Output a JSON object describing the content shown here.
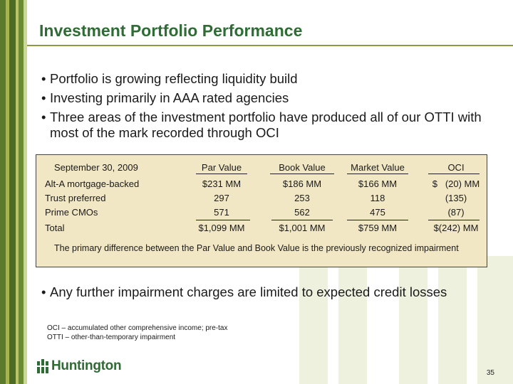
{
  "slide": {
    "title": "Investment Portfolio Performance",
    "bullets": [
      "Portfolio is growing reflecting liquidity build",
      "Investing primarily in AAA rated agencies",
      "Three areas of the investment portfolio have produced all of our OTTI with most of the mark recorded through OCI"
    ],
    "table": {
      "headers": [
        "September 30, 2009",
        "Par Value",
        "Book  Value",
        "Market Value",
        "OCI"
      ],
      "rows": [
        [
          "Alt-A mortgage-backed",
          "$231 MM",
          "$186 MM",
          "$166 MM",
          "$   (20) MM"
        ],
        [
          "Trust preferred",
          "297",
          "253",
          "118",
          "(135)"
        ],
        [
          "Prime CMOs",
          "571",
          "562",
          "475",
          "(87)"
        ],
        [
          "Total",
          "$1,099 MM",
          "$1,001 MM",
          "$759 MM",
          "$(242) MM"
        ]
      ],
      "note": "The primary difference between the Par Value and Book Value is the previously recognized impairment"
    },
    "last_bullet": "Any further impairment charges are limited to expected credit losses",
    "footnotes": [
      "OCI – accumulated other comprehensive income; pre-tax",
      "OTTI – other-than-temporary impairment"
    ],
    "logo_text": "Huntington",
    "page_number": "35"
  },
  "colors": {
    "brand_green": "#2f6b35",
    "panel_bg": "#f2e7c4"
  }
}
